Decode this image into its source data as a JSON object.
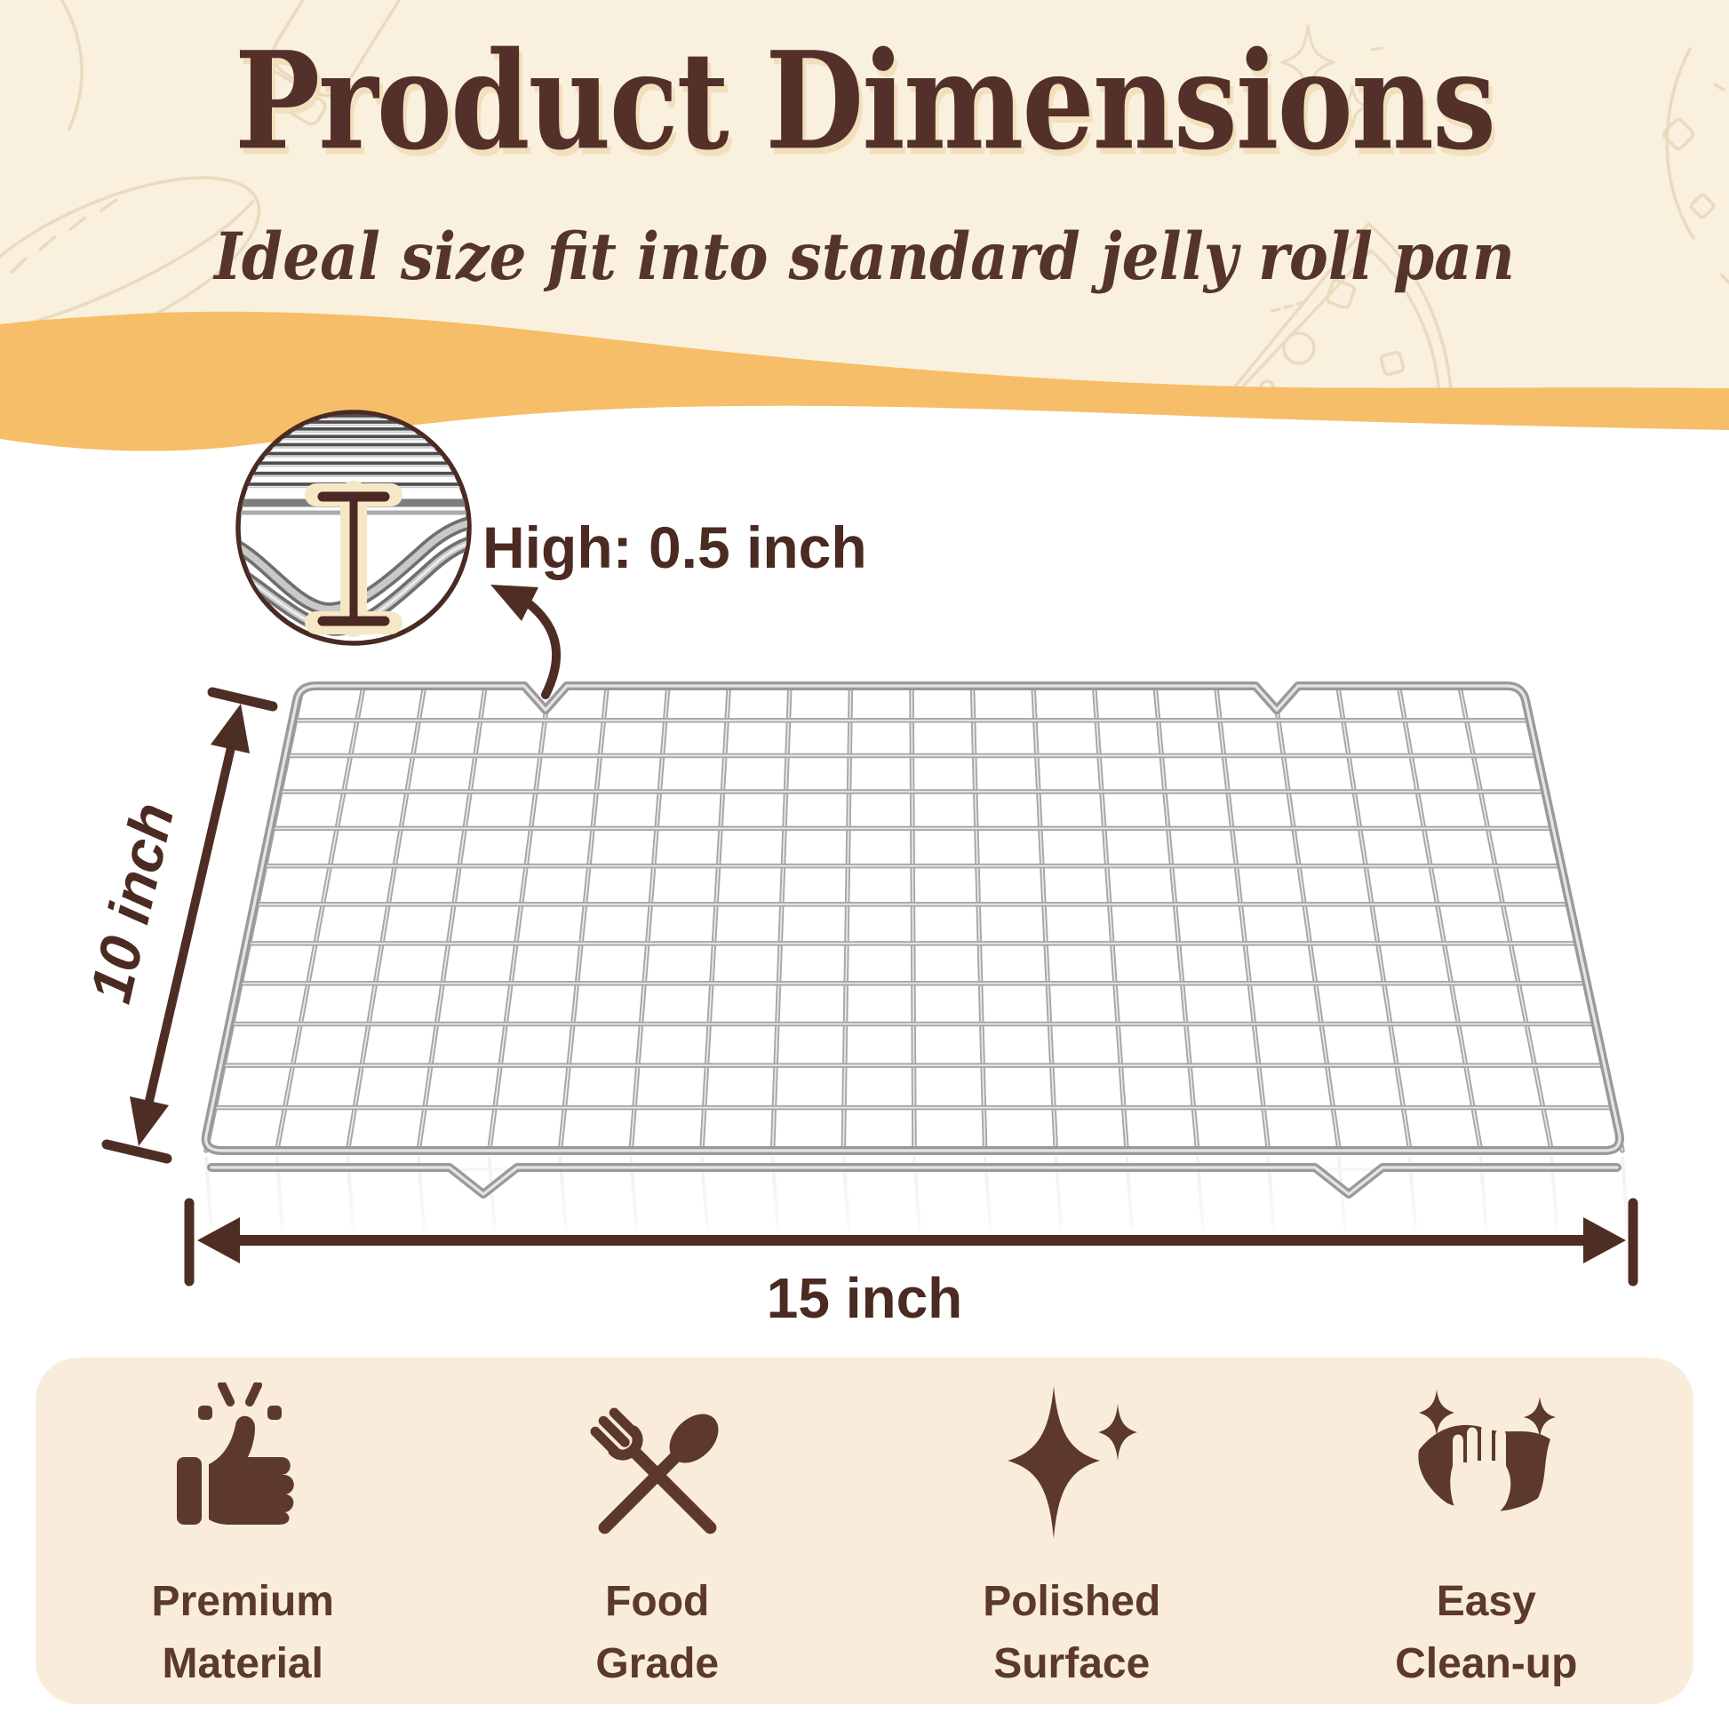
{
  "header": {
    "title": "Product Dimensions",
    "subtitle": "Ideal size fit into standard jelly roll pan"
  },
  "dimensions": {
    "height_label": "High: 0.5 inch",
    "depth_label": "10 inch",
    "width_label": "15 inch"
  },
  "features": [
    {
      "icon": "thumbs-up-icon",
      "line1": "Premium",
      "line2": "Material"
    },
    {
      "icon": "fork-spoon-icon",
      "line1": "Food",
      "line2": "Grade"
    },
    {
      "icon": "sparkles-icon",
      "line1": "Polished",
      "line2": "Surface"
    },
    {
      "icon": "hand-cloth-icon",
      "line1": "Easy",
      "line2": "Clean-up"
    }
  ],
  "colors": {
    "accent_brown": "#4E2D24",
    "title_brown": "#53312A",
    "header_cream": "#FAF0DE",
    "wave_orange": "#F6BE68",
    "panel_cream": "#FAECDA",
    "icon_brown": "#5C392C",
    "rack_silver": "#A6A6A6"
  }
}
